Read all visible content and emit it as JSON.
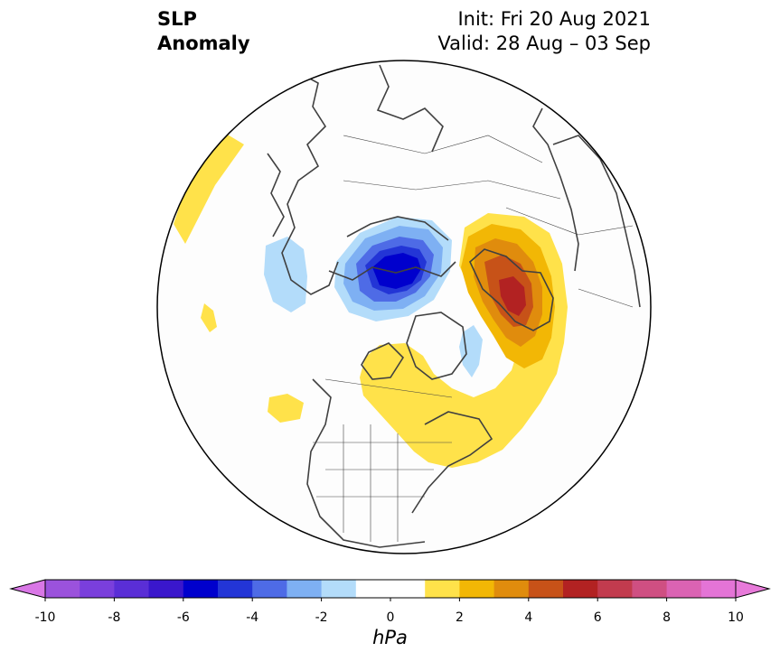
{
  "title": {
    "left_line1": "SLP",
    "left_line2": "Anomaly",
    "right_line1": "Init: Fri 20 Aug 2021",
    "right_line2": "Valid: 28 Aug – 03 Sep"
  },
  "colorbar": {
    "unit": "hPa",
    "tick_labels": [
      "-10",
      "-8",
      "-6",
      "-4",
      "-2",
      "0",
      "2",
      "4",
      "6",
      "8",
      "10"
    ],
    "min": -10,
    "max": 10,
    "step": 1,
    "colors": [
      "#9b52dc",
      "#7a3fdc",
      "#5a2ed6",
      "#3a17cc",
      "#0000cd",
      "#2335d6",
      "#4e6be6",
      "#7eb0f3",
      "#b3dcfa",
      "#ffffff",
      "#ffffff",
      "#ffe24a",
      "#f2b705",
      "#e08c0d",
      "#c75218",
      "#b22222",
      "#c23b4e",
      "#cf4f82",
      "#db63b3",
      "#e474d6"
    ],
    "extend_low_color": "#d977e6",
    "extend_high_color": "#e77ad9"
  },
  "map": {
    "projection": "north-polar-stereographic",
    "fill_color": "#fdfdfd",
    "border_color": "#000000",
    "coast_color": "#404040"
  }
}
